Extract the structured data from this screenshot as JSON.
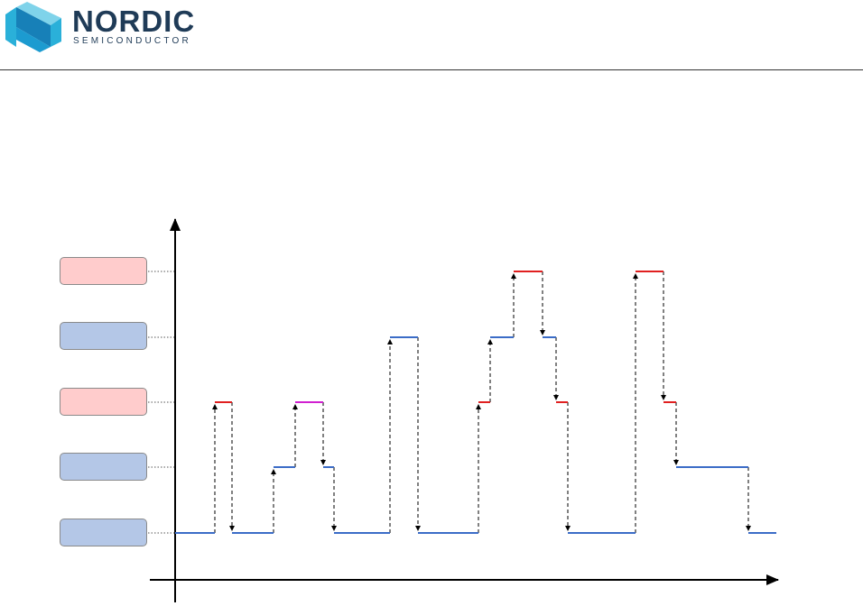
{
  "header": {
    "brand_name": "NORDIC",
    "brand_subtitle": "SEMICONDUCTOR",
    "logo_colors": {
      "light": "#7fd3ea",
      "mid": "#2ab0d9",
      "dark": "#1780b8",
      "text": "#1f3b57"
    }
  },
  "diagram": {
    "axes": {
      "x_arrow": true,
      "y_arrow": true,
      "labels_shown": false
    },
    "levels": [
      {
        "index": 0,
        "box_color": "#b4c7e7",
        "label": ""
      },
      {
        "index": 1,
        "box_color": "#b4c7e7",
        "label": ""
      },
      {
        "index": 2,
        "box_color": "#ffcccc",
        "label": ""
      },
      {
        "index": 3,
        "box_color": "#b4c7e7",
        "label": ""
      },
      {
        "index": 4,
        "box_color": "#ffcccc",
        "label": ""
      }
    ],
    "trace_colors": {
      "blue": "#3b6cc7",
      "red": "#e02020",
      "magenta": "#d020d0"
    },
    "segments": [
      {
        "level": 0,
        "color": "blue"
      },
      {
        "level": 2,
        "color": "red"
      },
      {
        "level": 0,
        "color": "blue"
      },
      {
        "level": 1,
        "color": "blue"
      },
      {
        "level": 2,
        "color": "magenta"
      },
      {
        "level": 1,
        "color": "blue"
      },
      {
        "level": 0,
        "color": "blue"
      },
      {
        "level": 3,
        "color": "blue"
      },
      {
        "level": 0,
        "color": "blue"
      },
      {
        "level": 2,
        "color": "red"
      },
      {
        "level": 3,
        "color": "blue"
      },
      {
        "level": 4,
        "color": "red"
      },
      {
        "level": 3,
        "color": "blue"
      },
      {
        "level": 2,
        "color": "red"
      },
      {
        "level": 0,
        "color": "blue"
      },
      {
        "level": 4,
        "color": "red"
      },
      {
        "level": 2,
        "color": "red"
      },
      {
        "level": 1,
        "color": "blue"
      },
      {
        "level": 0,
        "color": "blue"
      }
    ]
  }
}
